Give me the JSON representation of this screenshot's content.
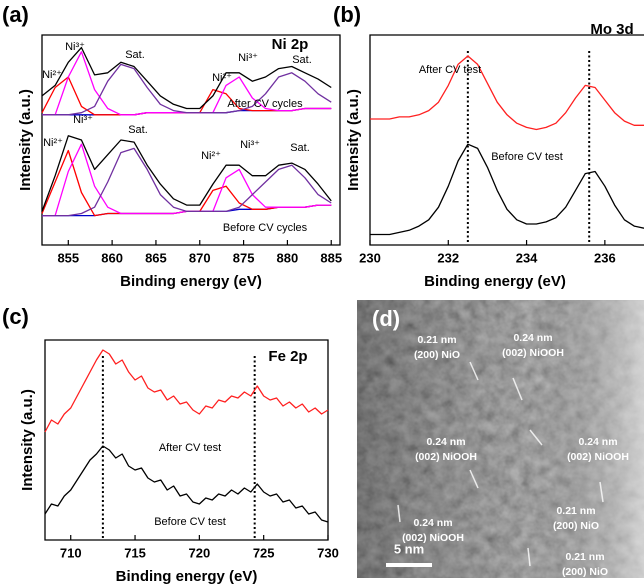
{
  "chart_data": [
    {
      "type": "line",
      "panel": "(a)",
      "title": "Ni 2p",
      "xlabel": "Binding energy (eV)",
      "ylabel": "Intensity (a.u.)",
      "xlim": [
        852,
        886
      ],
      "xticks": [
        855,
        860,
        865,
        870,
        875,
        880,
        885
      ],
      "ylim": [
        0,
        100
      ],
      "x": [
        852,
        853.5,
        855,
        856.5,
        858,
        859.5,
        861,
        862.5,
        864,
        865.5,
        867,
        868.5,
        870,
        871.5,
        873,
        874.5,
        876,
        877.5,
        879,
        880.5,
        882,
        883.5,
        885
      ],
      "series": [
        {
          "color": "#0000cc",
          "values": [
            62,
            62,
            62,
            62,
            62,
            62,
            62,
            62,
            63,
            63,
            63,
            63,
            63,
            63,
            63,
            64,
            64,
            64,
            64,
            64,
            65,
            65,
            65
          ]
        },
        {
          "color": "#ff0000",
          "values": [
            63,
            75,
            80,
            66,
            62,
            62,
            62,
            62,
            63,
            63,
            63,
            63,
            63,
            74,
            72,
            65,
            64,
            64,
            64,
            64,
            65,
            65,
            65
          ]
        },
        {
          "color": "#ff00ff",
          "values": [
            62,
            62,
            80,
            92,
            74,
            65,
            62,
            62,
            63,
            63,
            63,
            63,
            63,
            63,
            76,
            80,
            70,
            65,
            64,
            64,
            65,
            65,
            65
          ]
        },
        {
          "color": "#7030a0",
          "values": [
            62,
            62,
            62,
            63,
            66,
            78,
            86,
            84,
            75,
            67,
            64,
            63,
            63,
            63,
            63,
            64,
            66,
            72,
            80,
            82,
            78,
            72,
            68
          ]
        },
        {
          "color": "#000000",
          "values": [
            71,
            76,
            87,
            94,
            81,
            82,
            87,
            85,
            78,
            71,
            67,
            65,
            65,
            71,
            82,
            82,
            78,
            80,
            84,
            85,
            82,
            79,
            75
          ]
        },
        {
          "color": "#0000cc",
          "values": [
            14,
            14,
            14,
            14,
            14,
            15,
            15,
            15,
            15,
            15,
            15,
            16,
            16,
            16,
            16,
            17,
            17,
            17,
            18,
            18,
            18,
            19,
            19
          ]
        },
        {
          "color": "#ff0000",
          "values": [
            15,
            30,
            45,
            25,
            14,
            15,
            15,
            15,
            15,
            15,
            15,
            16,
            16,
            26,
            28,
            20,
            17,
            17,
            18,
            18,
            18,
            19,
            19
          ]
        },
        {
          "color": "#ff00ff",
          "values": [
            14,
            14,
            35,
            48,
            28,
            18,
            15,
            15,
            15,
            15,
            15,
            16,
            16,
            16,
            32,
            36,
            24,
            18,
            18,
            18,
            18,
            19,
            19
          ]
        },
        {
          "color": "#7030a0",
          "values": [
            14,
            14,
            14,
            15,
            18,
            30,
            44,
            46,
            36,
            24,
            18,
            16,
            16,
            16,
            16,
            18,
            24,
            30,
            36,
            38,
            32,
            24,
            20
          ]
        },
        {
          "color": "#000000",
          "values": [
            16,
            33,
            52,
            50,
            36,
            43,
            50,
            49,
            38,
            29,
            22,
            19,
            19,
            29,
            38,
            38,
            33,
            33,
            38,
            39,
            36,
            29,
            21
          ]
        }
      ],
      "annotations": [
        "Ni²⁺",
        "Ni³⁺",
        "Sat.",
        "Ni²⁺",
        "Ni³⁺",
        "Sat.",
        "After CV cycles",
        "Ni²⁺",
        "Ni³⁺",
        "Sat.",
        "Ni²⁺",
        "Ni³⁺",
        "Sat.",
        "Before CV cycles"
      ]
    },
    {
      "type": "line",
      "panel": "(b)",
      "title": "Mo 3d",
      "xlabel": "Binding energy (eV)",
      "ylabel": "Intensity (a.u.)",
      "xlim": [
        230,
        237
      ],
      "xticks": [
        230,
        232,
        234,
        236
      ],
      "ylim": [
        0,
        100
      ],
      "x": [
        230,
        230.25,
        230.5,
        230.75,
        231,
        231.25,
        231.5,
        231.75,
        232,
        232.25,
        232.5,
        232.75,
        233,
        233.25,
        233.5,
        233.75,
        234,
        234.25,
        234.5,
        234.75,
        235,
        235.25,
        235.5,
        235.75,
        236,
        236.25,
        236.5,
        236.75,
        237
      ],
      "series": [
        {
          "color": "#ff2020",
          "values": [
            60,
            60,
            60,
            61,
            61,
            62,
            64,
            68,
            76,
            86,
            90,
            86,
            77,
            68,
            62,
            58,
            56,
            55,
            56,
            58,
            63,
            70,
            76,
            75,
            69,
            63,
            59,
            57,
            57
          ]
        },
        {
          "color": "#000000",
          "values": [
            5,
            5,
            5,
            6,
            7,
            9,
            12,
            18,
            28,
            40,
            48,
            46,
            37,
            26,
            17,
            12,
            10,
            10,
            11,
            13,
            18,
            26,
            34,
            35,
            28,
            19,
            12,
            9,
            8
          ]
        }
      ],
      "vlines": [
        232.5,
        235.6
      ],
      "annotations": [
        "After CV test",
        "Before CV test"
      ]
    },
    {
      "type": "line",
      "panel": "(c)",
      "title": "Fe 2p",
      "xlabel": "Binding energy (eV)",
      "ylabel": "Intensity (a.u.)",
      "xlim": [
        708,
        730
      ],
      "xticks": [
        710,
        715,
        720,
        725,
        730
      ],
      "ylim": [
        0,
        100
      ],
      "x": [
        708,
        708.5,
        709,
        709.5,
        710,
        710.5,
        711,
        711.5,
        712,
        712.5,
        713,
        713.5,
        714,
        714.5,
        715,
        715.5,
        716,
        716.5,
        717,
        717.5,
        718,
        718.5,
        719,
        719.5,
        720,
        720.5,
        721,
        721.5,
        722,
        722.5,
        723,
        723.5,
        724,
        724.5,
        725,
        725.5,
        726,
        726.5,
        727,
        727.5,
        728,
        728.5,
        729,
        729.5,
        730
      ],
      "series": [
        {
          "color": "#ff2020",
          "values": [
            54,
            60,
            58,
            63,
            66,
            72,
            78,
            84,
            90,
            95,
            93,
            88,
            90,
            84,
            80,
            82,
            76,
            74,
            75,
            70,
            72,
            68,
            69,
            65,
            63,
            67,
            66,
            70,
            69,
            72,
            71,
            74,
            72,
            77,
            72,
            70,
            71,
            67,
            69,
            66,
            68,
            64,
            66,
            63,
            65
          ]
        },
        {
          "color": "#000000",
          "values": [
            13,
            18,
            17,
            22,
            25,
            30,
            35,
            40,
            43,
            47,
            45,
            41,
            43,
            37,
            35,
            36,
            31,
            29,
            30,
            25,
            27,
            22,
            23,
            19,
            18,
            21,
            20,
            23,
            22,
            25,
            23,
            26,
            24,
            28,
            24,
            22,
            23,
            19,
            20,
            16,
            17,
            13,
            14,
            10,
            9
          ]
        }
      ],
      "vlines": [
        712.5,
        724.3
      ],
      "annotations": [
        "After CV test",
        "Before CV test"
      ]
    }
  ],
  "micrograph": {
    "panel": "(d)",
    "scale_bar": "5 nm",
    "annotations": [
      {
        "spacing": "0.21 nm",
        "plane": "(200) NiO"
      },
      {
        "spacing": "0.24 nm",
        "plane": "(002) NiOOH"
      },
      {
        "spacing": "0.24 nm",
        "plane": "(002) NiOOH"
      },
      {
        "spacing": "0.24 nm",
        "plane": "(002) NiOOH"
      },
      {
        "spacing": "0.21 nm",
        "plane": "(200) NiO"
      },
      {
        "spacing": "0.24 nm",
        "plane": "(002) NiOOH"
      },
      {
        "spacing": "0.21 nm",
        "plane": "(200) NiO"
      }
    ]
  }
}
